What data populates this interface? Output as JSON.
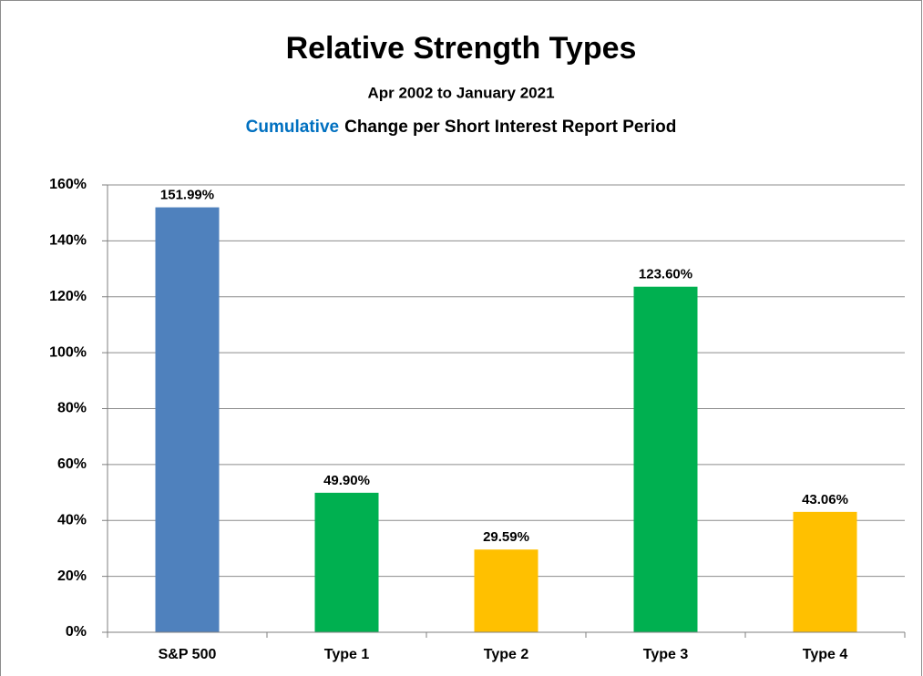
{
  "chart_data": {
    "type": "bar",
    "title": "Relative Strength Types",
    "subtitle": "Apr 2002 to January 2021",
    "subtitle_highlight": "Cumulative",
    "subtitle_rest": "Change per Short Interest Report Period",
    "categories": [
      "S&P 500",
      "Type 1",
      "Type 2",
      "Type 3",
      "Type 4"
    ],
    "values": [
      151.99,
      49.9,
      29.59,
      123.6,
      43.06
    ],
    "value_labels": [
      "151.99%",
      "49.90%",
      "29.59%",
      "123.60%",
      "43.06%"
    ],
    "colors": [
      "#4f81bd",
      "#00b050",
      "#ffc000",
      "#00b050",
      "#ffc000"
    ],
    "highlight_color": "#0070c0",
    "ylim": [
      0,
      160
    ],
    "yticks": [
      {
        "value": 0,
        "label": "0%"
      },
      {
        "value": 20,
        "label": "20%"
      },
      {
        "value": 40,
        "label": "40%"
      },
      {
        "value": 60,
        "label": "60%"
      },
      {
        "value": 80,
        "label": "80%"
      },
      {
        "value": 100,
        "label": "100%"
      },
      {
        "value": 120,
        "label": "120%"
      },
      {
        "value": 140,
        "label": "140%"
      },
      {
        "value": 160,
        "label": "160%"
      }
    ],
    "grid": true
  }
}
